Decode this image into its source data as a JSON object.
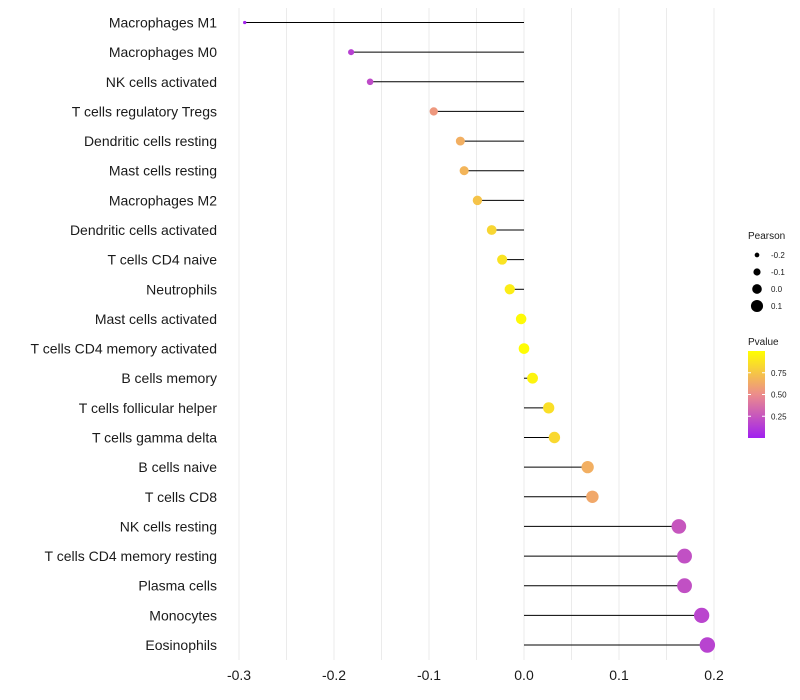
{
  "chart_data": {
    "type": "lollipop",
    "xlabel": "",
    "ylabel": "",
    "xlim": [
      -0.3,
      0.2
    ],
    "xticks": [
      "-0.3",
      "-0.2",
      "-0.1",
      "0.0",
      "0.1",
      "0.2"
    ],
    "xtick_values": [
      -0.3,
      -0.2,
      -0.1,
      0.0,
      0.1,
      0.2
    ],
    "grid": true,
    "items": [
      {
        "label": "Macrophages M1",
        "pearson": -0.294,
        "pvalue": 0.02
      },
      {
        "label": "Macrophages M0",
        "pearson": -0.182,
        "pvalue": 0.15
      },
      {
        "label": "NK cells activated",
        "pearson": -0.162,
        "pvalue": 0.2
      },
      {
        "label": "T cells regulatory  Tregs",
        "pearson": -0.095,
        "pvalue": 0.55
      },
      {
        "label": "Dendritic cells resting",
        "pearson": -0.067,
        "pvalue": 0.65
      },
      {
        "label": "Mast cells resting",
        "pearson": -0.063,
        "pvalue": 0.68
      },
      {
        "label": "Macrophages M2",
        "pearson": -0.049,
        "pvalue": 0.74
      },
      {
        "label": "Dendritic cells activated",
        "pearson": -0.034,
        "pvalue": 0.82
      },
      {
        "label": "T cells CD4 naive",
        "pearson": -0.023,
        "pvalue": 0.88
      },
      {
        "label": "Neutrophils",
        "pearson": -0.015,
        "pvalue": 0.92
      },
      {
        "label": "Mast cells activated",
        "pearson": -0.003,
        "pvalue": 0.98
      },
      {
        "label": "T cells CD4 memory activated",
        "pearson": 0.0,
        "pvalue": 0.99
      },
      {
        "label": "B cells memory",
        "pearson": 0.009,
        "pvalue": 0.95
      },
      {
        "label": "T cells follicular helper",
        "pearson": 0.026,
        "pvalue": 0.86
      },
      {
        "label": "T cells gamma delta",
        "pearson": 0.032,
        "pvalue": 0.83
      },
      {
        "label": "B cells naive",
        "pearson": 0.067,
        "pvalue": 0.65
      },
      {
        "label": "T cells CD8",
        "pearson": 0.072,
        "pvalue": 0.62
      },
      {
        "label": "NK cells resting",
        "pearson": 0.163,
        "pvalue": 0.25
      },
      {
        "label": "T cells CD4 memory resting",
        "pearson": 0.169,
        "pvalue": 0.22
      },
      {
        "label": "Plasma cells",
        "pearson": 0.169,
        "pvalue": 0.22
      },
      {
        "label": "Monocytes",
        "pearson": 0.187,
        "pvalue": 0.17
      },
      {
        "label": "Eosinophils",
        "pearson": 0.193,
        "pvalue": 0.16
      }
    ],
    "legend_size": {
      "title": "Pearson",
      "labels": [
        "-0.2",
        "-0.1",
        "0.0",
        "0.1"
      ],
      "values": [
        -0.2,
        -0.1,
        0.0,
        0.1
      ],
      "position": "right"
    },
    "legend_color": {
      "title": "Pvalue",
      "labels": [
        "0.75",
        "0.50",
        "0.25"
      ],
      "values": [
        0.75,
        0.5,
        0.25
      ],
      "range": [
        0.0,
        1.0
      ],
      "colors": [
        "#a020f0",
        "#ffff00"
      ],
      "position": "right"
    },
    "stem_color": "#000000",
    "grid_color": "#ebebeb"
  }
}
